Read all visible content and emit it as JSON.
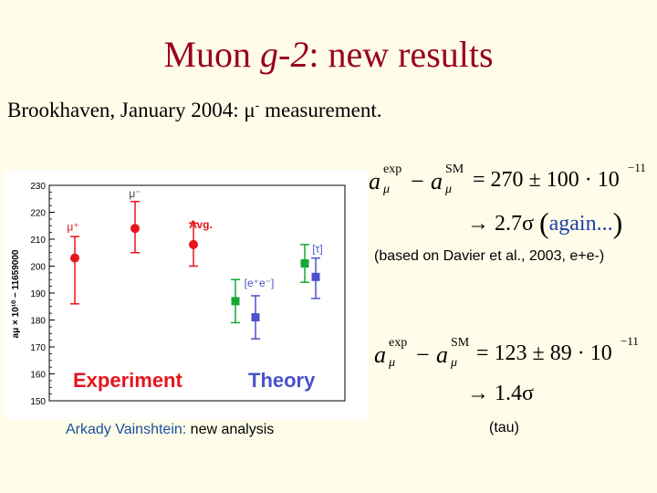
{
  "slide": {
    "title_main": "Muon ",
    "title_italic": "g-2",
    "title_rest": ": new results",
    "subtitle_a": "Brookhaven, January 2004: μ",
    "subtitle_sup": "-",
    "subtitle_b": " measurement.",
    "caption_name": "Arkady Vainshtein:",
    "caption_rest": " new analysis"
  },
  "equations": {
    "eq1_rhs": "= 270 ± 100 · 10",
    "eq1_exp": "−11",
    "eq1_arrow": "→ 2.7σ",
    "eq1_again": "again...",
    "note1": "(based on Davier et al., 2003, e+e-)",
    "eq2_rhs": "= 123 ± 89 · 10",
    "eq2_exp": "−11",
    "eq2_arrow": "→ 1.4σ",
    "note2": "(tau)"
  },
  "chart_data": {
    "type": "scatter",
    "ylabel": "aμ × 10¹⁰ − 11659000",
    "ylim": [
      150,
      230
    ],
    "yticks": [
      150,
      160,
      170,
      180,
      190,
      200,
      210,
      220,
      230
    ],
    "grid": false,
    "points": [
      {
        "label": "μ⁺",
        "y": 203,
        "err_lo": 17,
        "err_hi": 8,
        "color": "#e8141c"
      },
      {
        "label": "μ⁻",
        "y": 214,
        "err_lo": 9,
        "err_hi": 10,
        "color": "#e8141c"
      },
      {
        "label": "Avg.",
        "y": 208,
        "err_lo": 8,
        "err_hi": 8,
        "color": "#e8141c"
      },
      {
        "label": "[e⁺e⁻]",
        "y": 187,
        "err_lo": 8,
        "err_hi": 8,
        "color": "#12a832"
      },
      {
        "label": "",
        "y": 181,
        "err_lo": 8,
        "err_hi": 8,
        "color": "#4b52c8"
      },
      {
        "label": "[τ]",
        "y": 201,
        "err_lo": 7,
        "err_hi": 7,
        "color": "#12a832"
      },
      {
        "label": "",
        "y": 196,
        "err_lo": 8,
        "err_hi": 7,
        "color": "#4b52c8"
      }
    ],
    "group_labels": [
      "Experiment",
      "Theory"
    ]
  }
}
